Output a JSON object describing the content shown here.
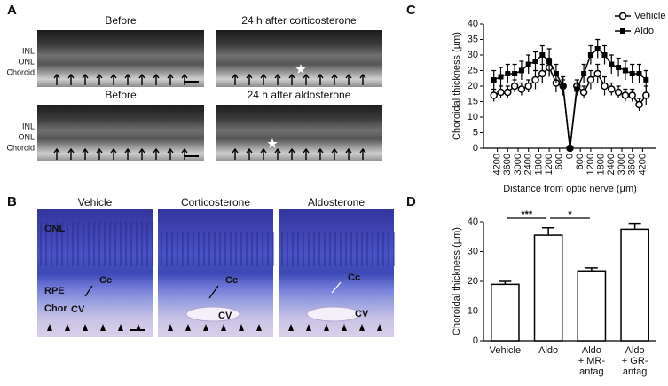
{
  "panel_a": {
    "label": "A",
    "rows": [
      {
        "titles": [
          "Before",
          "24 h after corticosterone"
        ],
        "layers": [
          "INL",
          "ONL",
          "Choroid"
        ]
      },
      {
        "titles": [
          "Before",
          "24 h after aldosterone"
        ],
        "layers": [
          "INL",
          "ONL",
          "Choroid"
        ]
      }
    ]
  },
  "panel_b": {
    "label": "B",
    "titles": [
      "Vehicle",
      "Corticosterone",
      "Aldosterone"
    ],
    "labels": [
      [
        "ONL",
        "RPE",
        "Chor",
        "Cc",
        "CV"
      ],
      [
        "Cc",
        "CV"
      ],
      [
        "Cc",
        "CV"
      ]
    ]
  },
  "chart_data": [
    {
      "type": "line",
      "panel_label": "C",
      "ylabel": "Choroidal thickness (µm)",
      "xlabel": "Distance from optic nerve (µm)",
      "x": [
        -4400,
        -4000,
        -3600,
        -3200,
        -2800,
        -2400,
        -2000,
        -1600,
        -1200,
        -800,
        -400,
        0,
        400,
        800,
        1200,
        1600,
        2000,
        2400,
        2800,
        3200,
        3600,
        4000,
        4400
      ],
      "series": [
        {
          "name": "Vehicle",
          "color": "#000000",
          "marker": "circle",
          "values": [
            17,
            18,
            18,
            20,
            19,
            20,
            22,
            24,
            26,
            21,
            20,
            0,
            20,
            18,
            22,
            24,
            20,
            19,
            18,
            17,
            17,
            14,
            17
          ],
          "errors": [
            2,
            2,
            2,
            2,
            2,
            2,
            3,
            3,
            3,
            3,
            2,
            0,
            2,
            2,
            3,
            3,
            3,
            2,
            2,
            2,
            2,
            2,
            3
          ]
        },
        {
          "name": "Aldo",
          "color": "#000000",
          "marker": "square",
          "values": [
            22,
            23,
            24,
            24,
            25,
            27,
            28,
            30,
            28,
            24,
            20,
            0,
            19,
            24,
            30,
            32,
            30,
            27,
            26,
            25,
            24,
            24,
            22
          ],
          "errors": [
            3,
            3,
            3,
            3,
            3,
            3,
            3,
            3,
            4,
            3,
            3,
            0,
            2,
            3,
            3,
            3,
            3,
            3,
            3,
            3,
            3,
            3,
            3
          ]
        }
      ],
      "xlim": [
        -5000,
        5000
      ],
      "xticks": [
        {
          "value": -4200,
          "label": "4200"
        },
        {
          "value": -3600,
          "label": "3600"
        },
        {
          "value": -3000,
          "label": "3000"
        },
        {
          "value": -2400,
          "label": "2400"
        },
        {
          "value": -1800,
          "label": "1800"
        },
        {
          "value": -1200,
          "label": "1200"
        },
        {
          "value": -600,
          "label": "600"
        },
        0,
        600,
        1200,
        1800,
        2400,
        3000,
        3600,
        4200
      ],
      "ylim": [
        0,
        40
      ],
      "yticks": [
        0,
        5,
        10,
        15,
        20,
        25,
        30,
        35,
        40
      ],
      "legend": "upper right"
    },
    {
      "type": "bar",
      "panel_label": "D",
      "ylabel": "Choroidal thickness (µm)",
      "categories": [
        "Vehicle",
        "Aldo",
        "Aldo\n+ MR-\nantag",
        "Aldo\n+ GR-\nantag"
      ],
      "values": [
        19,
        35.5,
        23.5,
        37.5
      ],
      "errors": [
        1,
        2.5,
        1,
        2
      ],
      "color": "#ffffff",
      "ylim": [
        0,
        40
      ],
      "yticks": [
        0,
        10,
        20,
        30,
        40
      ],
      "annotations": [
        "***",
        "*"
      ]
    }
  ]
}
